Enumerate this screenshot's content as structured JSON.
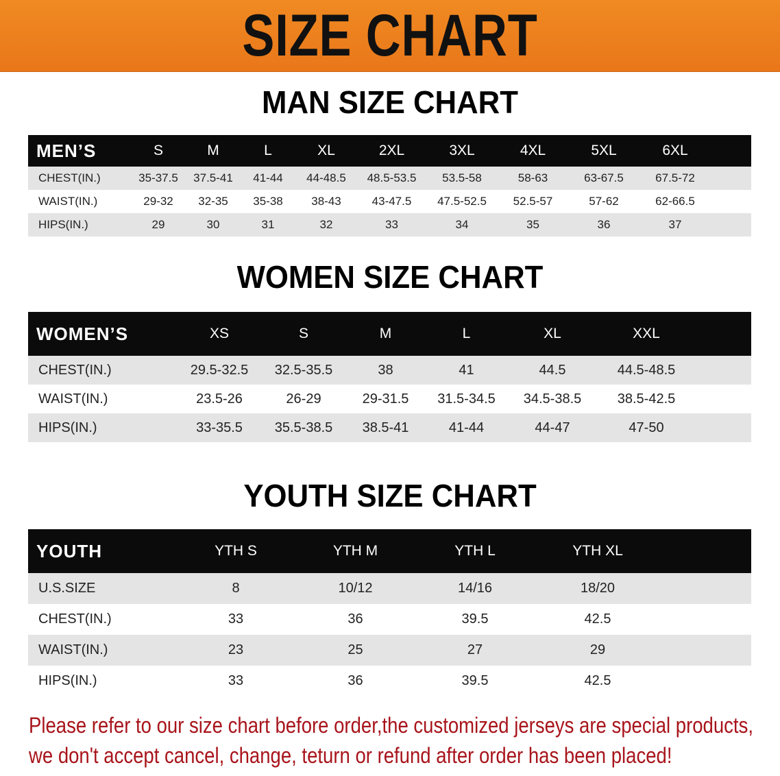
{
  "banner": {
    "title": "SIZE CHART",
    "color": "#ee7f1e"
  },
  "men": {
    "title": "MAN SIZE CHART",
    "header": [
      "MEN’S",
      "S",
      "M",
      "L",
      "XL",
      "2XL",
      "3XL",
      "4XL",
      "5XL",
      "6XL"
    ],
    "rows": [
      [
        "CHEST(IN.)",
        "35-37.5",
        "37.5-41",
        "41-44",
        "44-48.5",
        "48.5-53.5",
        "53.5-58",
        "58-63",
        "63-67.5",
        "67.5-72"
      ],
      [
        "WAIST(IN.)",
        "29-32",
        "32-35",
        "35-38",
        "38-43",
        "43-47.5",
        "47.5-52.5",
        "52.5-57",
        "57-62",
        "62-66.5"
      ],
      [
        "HIPS(IN.)",
        "29",
        "30",
        "31",
        "32",
        "33",
        "34",
        "35",
        "36",
        "37"
      ]
    ]
  },
  "women": {
    "title": "WOMEN SIZE CHART",
    "header": [
      "WOMEN’S",
      "XS",
      "S",
      "M",
      "L",
      "XL",
      "XXL"
    ],
    "rows": [
      [
        "CHEST(IN.)",
        "29.5-32.5",
        "32.5-35.5",
        "38",
        "41",
        "44.5",
        "44.5-48.5"
      ],
      [
        "WAIST(IN.)",
        "23.5-26",
        "26-29",
        "29-31.5",
        "31.5-34.5",
        "34.5-38.5",
        "38.5-42.5"
      ],
      [
        "HIPS(IN.)",
        "33-35.5",
        "35.5-38.5",
        "38.5-41",
        "41-44",
        "44-47",
        "47-50"
      ]
    ]
  },
  "youth": {
    "title": "YOUTH SIZE CHART",
    "header": [
      "YOUTH",
      "YTH S",
      "YTH M",
      "YTH L",
      "YTH XL"
    ],
    "rows": [
      [
        "U.S.SIZE",
        "8",
        "10/12",
        "14/16",
        "18/20"
      ],
      [
        "CHEST(IN.)",
        "33",
        "36",
        "39.5",
        "42.5"
      ],
      [
        "WAIST(IN.)",
        "23",
        "25",
        "27",
        "29"
      ],
      [
        "HIPS(IN.)",
        "33",
        "36",
        "39.5",
        "42.5"
      ]
    ]
  },
  "note": {
    "line1": "Please refer to our size chart before order,the customized jerseys are special products,",
    "line2": "we don't accept cancel, change, teturn or refund after order has been placed!",
    "color": "#a8141b"
  }
}
